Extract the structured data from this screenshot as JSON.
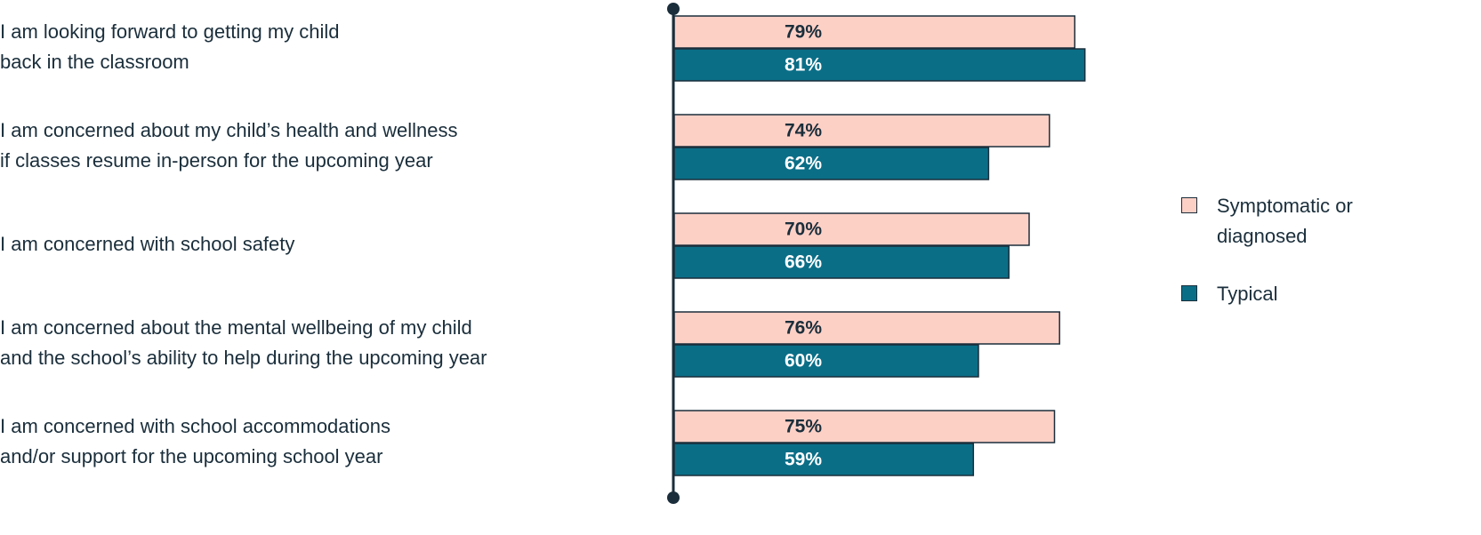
{
  "chart_data": {
    "type": "bar",
    "orientation": "horizontal",
    "categories": [
      [
        "I am looking forward to getting my child",
        "back in the classroom"
      ],
      [
        "I am concerned about my child’s health and wellness",
        "if classes resume in-person for the upcoming year"
      ],
      [
        "I am concerned with school safety"
      ],
      [
        "I am concerned about the mental wellbeing of my child",
        "and the school’s ability to help during the upcoming year"
      ],
      [
        "I am concerned with school accommodations",
        "and/or support for the upcoming school year"
      ]
    ],
    "series": [
      {
        "name": "Symptomatic or diagnosed",
        "color": "#fdd0c6",
        "label_color": "#1a2e3b",
        "values": [
          79,
          74,
          70,
          76,
          75
        ],
        "value_labels": [
          "79%",
          "74%",
          "70%",
          "76%",
          "75%"
        ]
      },
      {
        "name": "Typical",
        "color": "#0b6e87",
        "label_color": "#ffffff",
        "values": [
          81,
          62,
          66,
          60,
          59
        ],
        "value_labels": [
          "81%",
          "62%",
          "66%",
          "60%",
          "59%"
        ]
      }
    ],
    "xlim": [
      0,
      100
    ],
    "legend": "right"
  }
}
